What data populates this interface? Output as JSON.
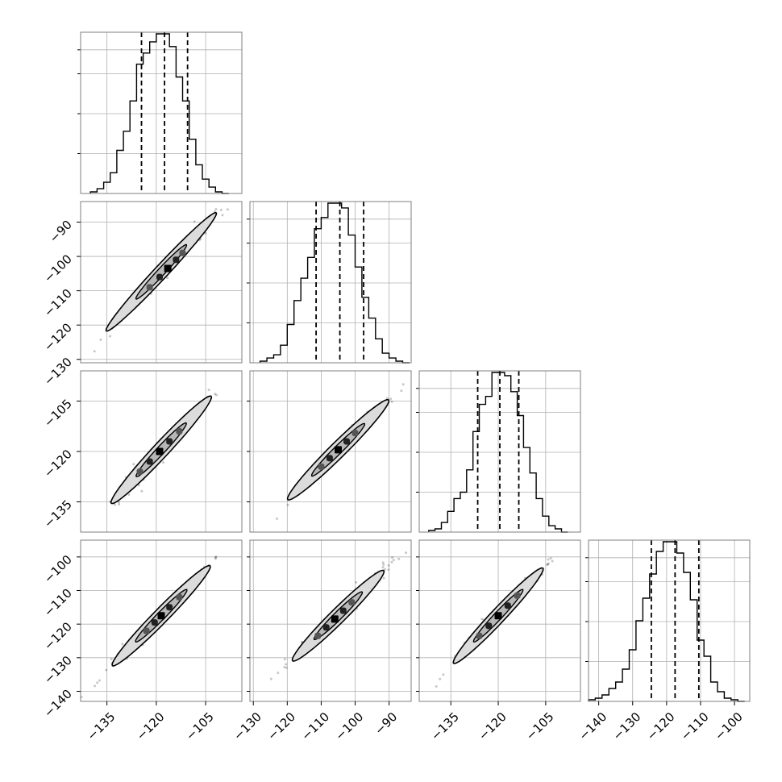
{
  "chart_data": {
    "type": "scatter",
    "plot_style": "corner",
    "grid": true,
    "parameters": 4,
    "quantile_lines": "dashed",
    "contour_levels": 2,
    "x_axes": [
      {
        "range": [
          -143,
          -94
        ],
        "ticks": [
          -135,
          -120,
          -105
        ],
        "tick_labels": [
          "−135",
          "−120",
          "−105"
        ]
      },
      {
        "range": [
          -131,
          -83.5
        ],
        "ticks": [
          -130,
          -120,
          -110,
          -100,
          -90
        ],
        "tick_labels": [
          "−130",
          "−120",
          "−110",
          "−100",
          "−90"
        ]
      },
      {
        "range": [
          -145,
          -94
        ],
        "ticks": [
          -135,
          -120,
          -105
        ],
        "tick_labels": [
          "−135",
          "−120",
          "−105"
        ]
      },
      {
        "range": [
          -143,
          -95.5
        ],
        "ticks": [
          -140,
          -130,
          -120,
          -110,
          -100
        ],
        "tick_labels": [
          "−140",
          "−130",
          "−120",
          "−110",
          "−100"
        ]
      }
    ],
    "y_axes": [
      null,
      {
        "range": [
          -131,
          -84
        ],
        "ticks": [
          -90,
          -100,
          -110,
          -120,
          -130
        ],
        "tick_labels": [
          "−90",
          "−100",
          "−110",
          "−120",
          "−130"
        ]
      },
      {
        "range": [
          -144,
          -96
        ],
        "ticks": [
          -105,
          -120,
          -135
        ],
        "tick_labels": [
          "−105",
          "−120",
          "−135"
        ]
      },
      {
        "range": [
          -143,
          -95
        ],
        "ticks": [
          -100,
          -110,
          -120,
          -130,
          -140
        ],
        "tick_labels": [
          "−100",
          "−110",
          "−120",
          "−130",
          "−140"
        ]
      }
    ],
    "histograms": [
      {
        "quantiles": [
          -124.5,
          -117.5,
          -110.5
        ],
        "bin_edges": [
          -140,
          -138,
          -136,
          -134,
          -132,
          -130,
          -128,
          -126,
          -124,
          -122,
          -120,
          -118,
          -116,
          -114,
          -112,
          -110,
          -108,
          -106,
          -104,
          -102,
          -100,
          -98
        ],
        "counts": [
          1,
          3,
          7,
          13,
          27,
          39,
          58,
          81,
          88,
          95,
          100,
          100,
          92,
          73,
          58,
          34,
          18,
          9,
          4,
          1,
          0
        ]
      },
      {
        "quantiles": [
          -111.5,
          -104.5,
          -97.5
        ],
        "bin_edges": [
          -128,
          -126,
          -124,
          -122,
          -120,
          -118,
          -116,
          -114,
          -112,
          -110,
          -108,
          -106,
          -104,
          -102,
          -100,
          -98,
          -96,
          -94,
          -92,
          -90,
          -88,
          -86,
          -84
        ],
        "counts": [
          1,
          3,
          5,
          11,
          24,
          39,
          53,
          66,
          84,
          91,
          100,
          100,
          97,
          80,
          60,
          41,
          28,
          15,
          6,
          3,
          1,
          0
        ]
      },
      {
        "quantiles": [
          -126.5,
          -119.5,
          -113.5
        ],
        "bin_edges": [
          -142,
          -140,
          -138,
          -136,
          -134,
          -132,
          -130,
          -128,
          -126,
          -124,
          -122,
          -120,
          -118,
          -116,
          -114,
          -112,
          -110,
          -108,
          -106,
          -104,
          -102,
          -100,
          -98
        ],
        "counts": [
          1,
          2,
          6,
          13,
          21,
          25,
          39,
          63,
          80,
          85,
          100,
          100,
          98,
          88,
          73,
          53,
          37,
          21,
          10,
          4,
          2,
          0
        ]
      },
      {
        "quantiles": [
          -124.5,
          -117.5,
          -110.5
        ],
        "bin_edges": [
          -143,
          -141,
          -139,
          -137,
          -135,
          -133,
          -131,
          -129,
          -127,
          -125,
          -123,
          -121,
          -119,
          -117,
          -115,
          -113,
          -111,
          -109,
          -107,
          -105,
          -103,
          -101,
          -99,
          -97
        ],
        "counts": [
          1,
          2,
          4,
          8,
          12,
          20,
          32,
          50,
          64,
          79,
          93,
          99,
          99,
          92,
          80,
          63,
          38,
          28,
          12,
          6,
          2,
          1,
          0
        ]
      }
    ],
    "joint_posteriors": [
      {
        "row": 1,
        "col": 0,
        "slope": 1.03,
        "center": [
          -118.5,
          -104.5
        ],
        "outer_ellipse": {
          "half_length": 24,
          "half_width": 2.0
        },
        "inner_ellipse": {
          "half_length": 11,
          "half_width": 1.1
        },
        "dense_points": [
          [
            -122,
            -109
          ],
          [
            -119,
            -106
          ],
          [
            -116.5,
            -103.5
          ],
          [
            -114,
            -101
          ],
          [
            -112,
            -99
          ]
        ]
      },
      {
        "row": 2,
        "col": 0,
        "slope": 1.05,
        "center": [
          -118.5,
          -119.5
        ],
        "outer_ellipse": {
          "half_length": 22,
          "half_width": 2.3
        },
        "inner_ellipse": {
          "half_length": 11,
          "half_width": 1.2
        },
        "dense_points": [
          [
            -125,
            -126
          ],
          [
            -122,
            -123
          ],
          [
            -119,
            -120
          ],
          [
            -116,
            -117
          ],
          [
            -113,
            -114
          ]
        ]
      },
      {
        "row": 2,
        "col": 1,
        "slope": 1.0,
        "center": [
          -105,
          -119.5
        ],
        "outer_ellipse": {
          "half_length": 21,
          "half_width": 2.3
        },
        "inner_ellipse": {
          "half_length": 11,
          "half_width": 1.2
        },
        "dense_points": [
          [
            -110,
            -124.5
          ],
          [
            -107.5,
            -122
          ],
          [
            -105,
            -119.5
          ],
          [
            -102.5,
            -117
          ],
          [
            -100,
            -114.5
          ]
        ]
      },
      {
        "row": 3,
        "col": 0,
        "slope": 1.0,
        "center": [
          -118.5,
          -117.5
        ],
        "outer_ellipse": {
          "half_length": 21,
          "half_width": 2.2
        },
        "inner_ellipse": {
          "half_length": 11,
          "half_width": 1.2
        },
        "dense_points": [
          [
            -123,
            -122
          ],
          [
            -120.5,
            -119.5
          ],
          [
            -118.5,
            -117.5
          ],
          [
            -116,
            -115
          ],
          [
            -113,
            -112
          ]
        ]
      },
      {
        "row": 3,
        "col": 1,
        "slope": 1.0,
        "center": [
          -105,
          -117.5
        ],
        "outer_ellipse": {
          "half_length": 19,
          "half_width": 2.2
        },
        "inner_ellipse": {
          "half_length": 10,
          "half_width": 1.2
        },
        "dense_points": [
          [
            -111,
            -123.5
          ],
          [
            -108.5,
            -121
          ],
          [
            -106,
            -118.5
          ],
          [
            -103.5,
            -116
          ],
          [
            -101,
            -113.5
          ]
        ]
      },
      {
        "row": 3,
        "col": 2,
        "slope": 1.0,
        "center": [
          -120,
          -117.5
        ],
        "outer_ellipse": {
          "half_length": 20,
          "half_width": 2.2
        },
        "inner_ellipse": {
          "half_length": 11,
          "half_width": 1.2
        },
        "dense_points": [
          [
            -126,
            -123.5
          ],
          [
            -123,
            -120.5
          ],
          [
            -120,
            -117.5
          ],
          [
            -117,
            -114.5
          ],
          [
            -114,
            -111.5
          ]
        ]
      }
    ]
  }
}
